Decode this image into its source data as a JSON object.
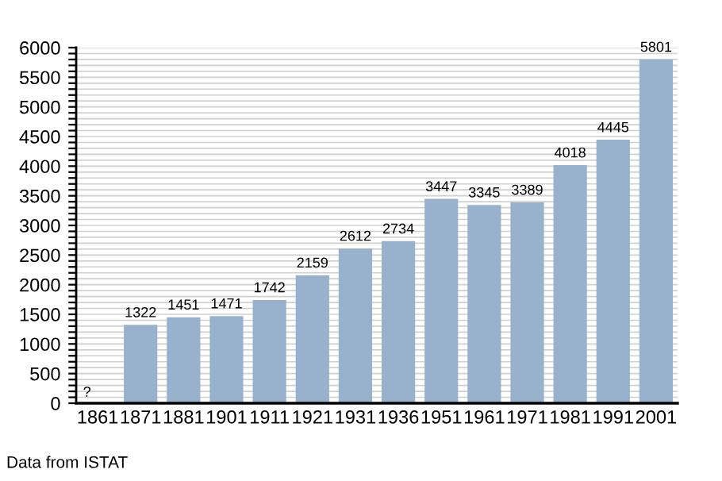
{
  "chart_data": {
    "type": "bar",
    "categories": [
      "1861",
      "1871",
      "1881",
      "1901",
      "1911",
      "1921",
      "1931",
      "1936",
      "1951",
      "1961",
      "1971",
      "1981",
      "1991",
      "2001"
    ],
    "values": [
      null,
      1322,
      1451,
      1471,
      1742,
      2159,
      2612,
      2734,
      3447,
      3345,
      3389,
      4018,
      4445,
      5801
    ],
    "value_labels": [
      "?",
      "1322",
      "1451",
      "1471",
      "1742",
      "2159",
      "2612",
      "2734",
      "3447",
      "3345",
      "3389",
      "4018",
      "4445",
      "5801"
    ],
    "color": "#98b2cd",
    "ylim": [
      0,
      6000
    ],
    "yticks": [
      0,
      {
        "value": 100,
        "label": null
      },
      {
        "value": 200,
        "label": null
      },
      {
        "value": 300,
        "label": null
      },
      {
        "value": 400,
        "label": null
      },
      500,
      {
        "value": 600,
        "label": null
      },
      {
        "value": 700,
        "label": null
      },
      {
        "value": 800,
        "label": null
      },
      {
        "value": 900,
        "label": null
      },
      1000,
      {
        "value": 1100,
        "label": null
      },
      {
        "value": 1200,
        "label": null
      },
      {
        "value": 1300,
        "label": null
      },
      {
        "value": 1400,
        "label": null
      },
      1500,
      {
        "value": 1600,
        "label": null
      },
      {
        "value": 1700,
        "label": null
      },
      {
        "value": 1800,
        "label": null
      },
      {
        "value": 1900,
        "label": null
      },
      2000,
      {
        "value": 2100,
        "label": null
      },
      {
        "value": 2200,
        "label": null
      },
      {
        "value": 2300,
        "label": null
      },
      {
        "value": 2400,
        "label": null
      },
      2500,
      {
        "value": 2600,
        "label": null
      },
      {
        "value": 2700,
        "label": null
      },
      {
        "value": 2800,
        "label": null
      },
      {
        "value": 2900,
        "label": null
      },
      3000,
      {
        "value": 3100,
        "label": null
      },
      {
        "value": 3200,
        "label": null
      },
      {
        "value": 3300,
        "label": null
      },
      {
        "value": 3400,
        "label": null
      },
      3500,
      {
        "value": 3600,
        "label": null
      },
      {
        "value": 3700,
        "label": null
      },
      {
        "value": 3800,
        "label": null
      },
      {
        "value": 3900,
        "label": null
      },
      4000,
      {
        "value": 4100,
        "label": null
      },
      {
        "value": 4200,
        "label": null
      },
      {
        "value": 4300,
        "label": null
      },
      {
        "value": 4400,
        "label": null
      },
      4500,
      {
        "value": 4600,
        "label": null
      },
      {
        "value": 4700,
        "label": null
      },
      {
        "value": 4800,
        "label": null
      },
      {
        "value": 4900,
        "label": null
      },
      5000,
      {
        "value": 5100,
        "label": null
      },
      {
        "value": 5200,
        "label": null
      },
      {
        "value": 5300,
        "label": null
      },
      {
        "value": 5400,
        "label": null
      },
      5500,
      {
        "value": 5600,
        "label": null
      },
      {
        "value": 5700,
        "label": null
      },
      {
        "value": 5800,
        "label": null
      },
      {
        "value": 5900,
        "label": null
      },
      6000
    ],
    "grid": "y",
    "annotations": [
      "Data from ISTAT"
    ]
  }
}
